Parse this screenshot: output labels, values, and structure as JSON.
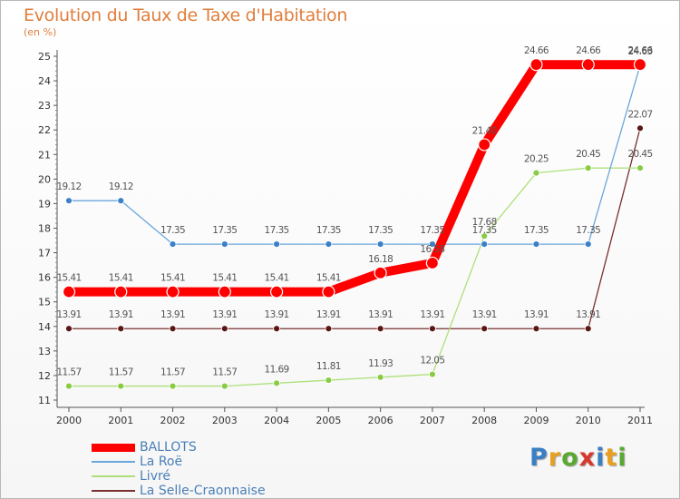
{
  "title": "Evolution du Taux de Taxe d'Habitation",
  "unit_label": "(en %)",
  "logo": {
    "text": "Proxiti",
    "letters": [
      {
        "ch": "P",
        "color": "#3a7fc4"
      },
      {
        "ch": "r",
        "color": "#e8a020"
      },
      {
        "ch": "o",
        "color": "#5aa832"
      },
      {
        "ch": "x",
        "color": "#d8382c"
      },
      {
        "ch": "i",
        "color": "#3a7fc4"
      },
      {
        "ch": "t",
        "color": "#e8a020"
      },
      {
        "ch": "i",
        "color": "#5aa832"
      }
    ]
  },
  "chart_data": {
    "type": "line",
    "title": "Evolution du Taux de Taxe d'Habitation",
    "ylabel": "(en %)",
    "xlabel": "",
    "x": [
      "2000",
      "2001",
      "2002",
      "2003",
      "2004",
      "2005",
      "2006",
      "2007",
      "2008",
      "2009",
      "2010",
      "2011"
    ],
    "ylim": [
      11,
      25
    ],
    "yticks": [
      11,
      12,
      13,
      14,
      15,
      16,
      17,
      18,
      19,
      20,
      21,
      22,
      23,
      24,
      25
    ],
    "grid": false,
    "legend": "bottom-left",
    "series": [
      {
        "name": "BALLOTS",
        "color": "#ff0000",
        "values": [
          15.41,
          15.41,
          15.41,
          15.41,
          15.41,
          15.41,
          16.18,
          16.58,
          21.4,
          24.66,
          24.66,
          24.66
        ],
        "labels": [
          "15.41",
          "15.41",
          "15.41",
          "15.41",
          "15.41",
          "15.41",
          "16.18",
          "16.58",
          "21.40",
          "24.66",
          "24.66",
          "24.66"
        ]
      },
      {
        "name": "La Roë",
        "color": "#5b9bd5",
        "values": [
          19.12,
          19.12,
          17.35,
          17.35,
          17.35,
          17.35,
          17.35,
          17.35,
          17.35,
          17.35,
          17.35,
          24.63
        ],
        "labels": [
          "19.12",
          "19.12",
          "17.35",
          "17.35",
          "17.35",
          "17.35",
          "17.35",
          "17.35",
          "17.35",
          "17.35",
          "17.35",
          "24.63"
        ]
      },
      {
        "name": "Livré",
        "color": "#99dd66",
        "values": [
          11.57,
          11.57,
          11.57,
          11.57,
          11.69,
          11.81,
          11.93,
          12.05,
          17.68,
          20.25,
          20.45,
          20.45
        ],
        "labels": [
          "11.57",
          "11.57",
          "11.57",
          "11.57",
          "11.69",
          "11.81",
          "11.93",
          "12.05",
          "17.68",
          "20.25",
          "20.45",
          "20.45"
        ]
      },
      {
        "name": "La Selle-Craonnaise",
        "color": "#6b2020",
        "values": [
          13.91,
          13.91,
          13.91,
          13.91,
          13.91,
          13.91,
          13.91,
          13.91,
          13.91,
          13.91,
          13.91,
          22.07
        ],
        "labels": [
          "13.91",
          "13.91",
          "13.91",
          "13.91",
          "13.91",
          "13.91",
          "13.91",
          "13.91",
          "13.91",
          "13.91",
          "13.91",
          "22.07"
        ]
      }
    ]
  }
}
